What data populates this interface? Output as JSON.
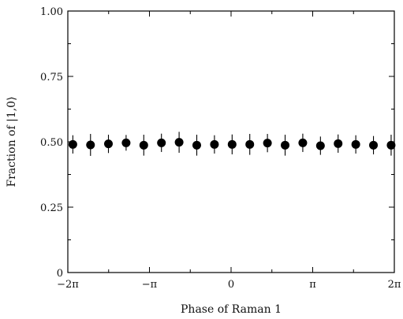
{
  "chart_data": {
    "type": "scatter",
    "title": "",
    "xlabel": "Phase of Raman 1",
    "ylabel": "Fraction of |1,0⟩",
    "xlim": [
      -6.2832,
      6.2832
    ],
    "ylim": [
      0,
      1.0
    ],
    "x_ticks": [
      {
        "value": -6.2832,
        "label": "−2π"
      },
      {
        "value": -3.1416,
        "label": "−π"
      },
      {
        "value": 0,
        "label": "0"
      },
      {
        "value": 3.1416,
        "label": "π"
      },
      {
        "value": 6.2832,
        "label": "2π"
      }
    ],
    "y_ticks": [
      {
        "value": 0,
        "label": "0"
      },
      {
        "value": 0.25,
        "label": "0.25"
      },
      {
        "value": 0.5,
        "label": "0.50"
      },
      {
        "value": 0.75,
        "label": "0.75"
      },
      {
        "value": 1.0,
        "label": "1.00"
      }
    ],
    "grid": false,
    "legend": "none",
    "marker_color": "#000000",
    "series": [
      {
        "x": [
          -6.09,
          -5.41,
          -4.72,
          -4.04,
          -3.36,
          -2.68,
          -2.0,
          -1.32,
          -0.64,
          0.04,
          0.72,
          1.4,
          2.08,
          2.76,
          3.44,
          4.12,
          4.8,
          5.48,
          6.16
        ],
        "y": [
          0.49,
          0.488,
          0.492,
          0.496,
          0.487,
          0.496,
          0.498,
          0.487,
          0.49,
          0.49,
          0.49,
          0.495,
          0.487,
          0.496,
          0.485,
          0.493,
          0.49,
          0.487,
          0.487
        ],
        "err": [
          0.035,
          0.042,
          0.035,
          0.03,
          0.04,
          0.035,
          0.04,
          0.04,
          0.035,
          0.038,
          0.04,
          0.035,
          0.04,
          0.035,
          0.035,
          0.035,
          0.035,
          0.035,
          0.04
        ]
      }
    ]
  }
}
